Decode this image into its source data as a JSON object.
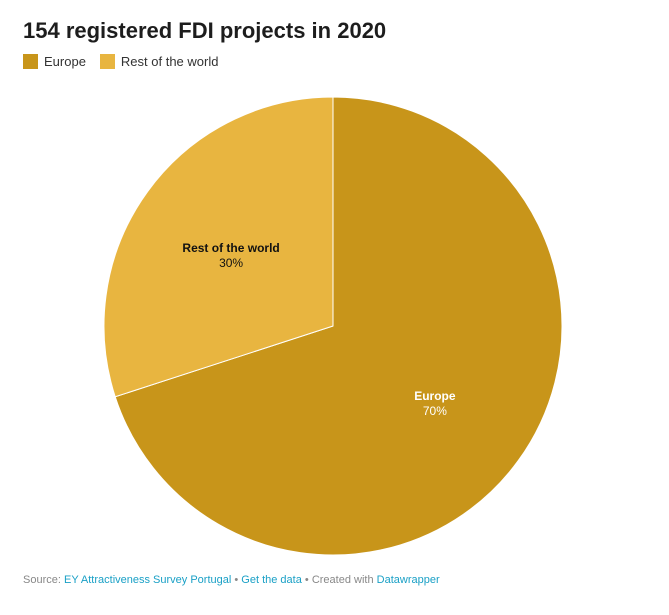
{
  "chart_data": {
    "type": "pie",
    "title": "154 registered FDI projects in 2020",
    "legend_position": "top-left",
    "slices": [
      {
        "name": "Europe",
        "value": 70,
        "label": "70%",
        "color": "#c8951a"
      },
      {
        "name": "Rest of the world",
        "value": 30,
        "label": "30%",
        "color": "#e8b540"
      }
    ]
  },
  "footer": {
    "source_prefix": "Source:",
    "source_link": "EY Attractiveness Survey Portugal",
    "sep1": "•",
    "get_data": "Get the data",
    "sep2": "• Created with",
    "datawrapper": "Datawrapper"
  }
}
